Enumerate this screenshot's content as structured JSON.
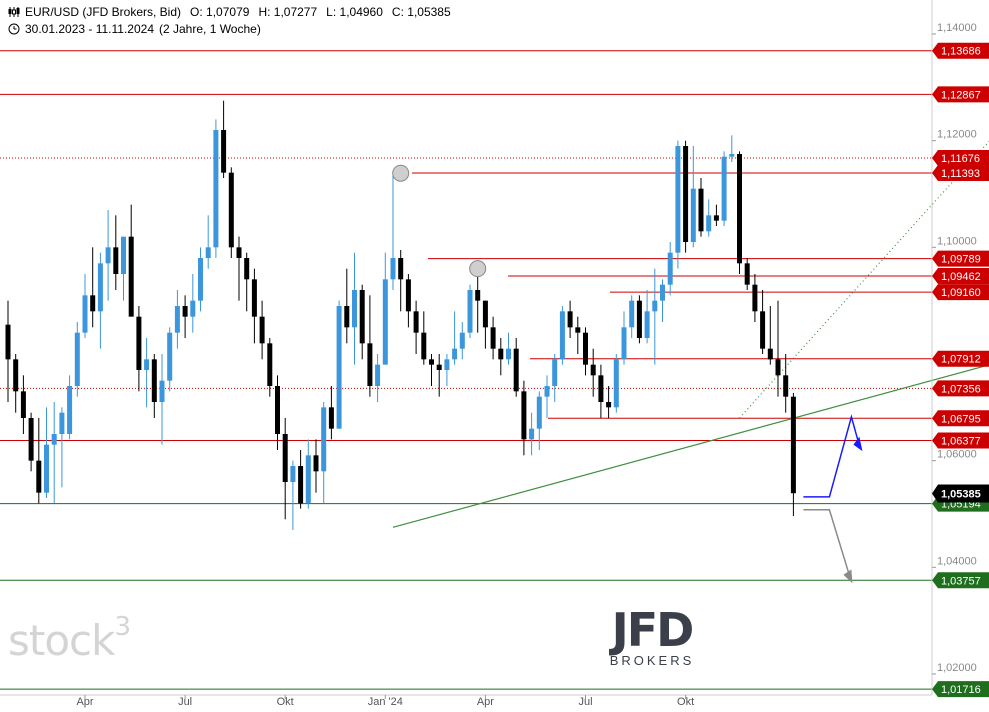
{
  "header": {
    "symbol": "EUR/USD (JFD Brokers, Bid)",
    "open_label": "O:",
    "open": "1,07079",
    "high_label": "H:",
    "high": "1,07277",
    "low_label": "L:",
    "low": "1,04960",
    "close_label": "C:",
    "close": "1,05385",
    "range": "30.01.2023 - 11.11.2024",
    "period": "(2 Jahre, 1 Woche)",
    "chart_icon": "candlestick-chart-icon",
    "period_icon": "clock-icon"
  },
  "watermark": {
    "text": "stock",
    "sup": "3"
  },
  "logo": {
    "big": "JFD",
    "small": "BROKERS"
  },
  "colors": {
    "candle_up": "#3c96dc",
    "candle_down": "#000000",
    "resistance": "#cc0000",
    "support": "#1e6e1e",
    "trendline": "#3f8f3f",
    "projection_up": "#1a1aff",
    "projection_down": "#8a8a8a",
    "price_badge": "#000000"
  },
  "chart_data": {
    "type": "candlestick",
    "title": "EUR/USD (JFD Brokers, Bid)",
    "timeframe": "weekly",
    "ylim": [
      1.012,
      1.148
    ],
    "y_ticks": [
      "1,14000",
      "1,12000",
      "1,10000",
      "1,06000",
      "1,04000",
      "1,02000"
    ],
    "x_ticks": [
      "Apr",
      "Jul",
      "Okt",
      "Jan '24",
      "Apr",
      "Jul",
      "Okt"
    ],
    "last_price": "1,05385",
    "horizontal_levels": [
      {
        "label": "1,13686",
        "value": 1.13686,
        "kind": "resistance",
        "style": "solid"
      },
      {
        "label": "1,12867",
        "value": 1.12867,
        "kind": "resistance",
        "style": "solid"
      },
      {
        "label": "1,11676",
        "value": 1.11676,
        "kind": "resistance",
        "style": "dotted"
      },
      {
        "label": "1,11393",
        "value": 1.11393,
        "kind": "resistance",
        "style": "solid"
      },
      {
        "label": "1,09789",
        "value": 1.09789,
        "kind": "resistance",
        "style": "solid"
      },
      {
        "label": "1,09462",
        "value": 1.09462,
        "kind": "resistance",
        "style": "solid"
      },
      {
        "label": "1,09160",
        "value": 1.0916,
        "kind": "resistance",
        "style": "solid"
      },
      {
        "label": "1,07912",
        "value": 1.07912,
        "kind": "resistance",
        "style": "solid"
      },
      {
        "label": "1,07356",
        "value": 1.07356,
        "kind": "resistance",
        "style": "dotted"
      },
      {
        "label": "1,06795",
        "value": 1.06795,
        "kind": "resistance",
        "style": "solid"
      },
      {
        "label": "1,06377",
        "value": 1.06377,
        "kind": "resistance",
        "style": "solid"
      },
      {
        "label": "1,05194",
        "value": 1.05194,
        "kind": "support",
        "style": "solid"
      },
      {
        "label": "1,03757",
        "value": 1.03757,
        "kind": "support",
        "style": "solid"
      },
      {
        "label": "1,01716",
        "value": 1.01716,
        "kind": "support",
        "style": "solid"
      }
    ],
    "candles": [
      {
        "o": 1.0855,
        "h": 1.09,
        "l": 1.071,
        "c": 1.079
      },
      {
        "o": 1.079,
        "h": 1.08,
        "l": 1.069,
        "c": 1.073
      },
      {
        "o": 1.073,
        "h": 1.076,
        "l": 1.065,
        "c": 1.068
      },
      {
        "o": 1.068,
        "h": 1.069,
        "l": 1.058,
        "c": 1.06
      },
      {
        "o": 1.06,
        "h": 1.068,
        "l": 1.052,
        "c": 1.054
      },
      {
        "o": 1.054,
        "h": 1.07,
        "l": 1.053,
        "c": 1.063
      },
      {
        "o": 1.063,
        "h": 1.071,
        "l": 1.052,
        "c": 1.065
      },
      {
        "o": 1.065,
        "h": 1.07,
        "l": 1.055,
        "c": 1.069
      },
      {
        "o": 1.065,
        "h": 1.076,
        "l": 1.064,
        "c": 1.074
      },
      {
        "o": 1.074,
        "h": 1.086,
        "l": 1.072,
        "c": 1.084
      },
      {
        "o": 1.084,
        "h": 1.095,
        "l": 1.083,
        "c": 1.091
      },
      {
        "o": 1.091,
        "h": 1.1,
        "l": 1.085,
        "c": 1.088
      },
      {
        "o": 1.088,
        "h": 1.099,
        "l": 1.081,
        "c": 1.097
      },
      {
        "o": 1.097,
        "h": 1.107,
        "l": 1.09,
        "c": 1.1
      },
      {
        "o": 1.1,
        "h": 1.106,
        "l": 1.092,
        "c": 1.095
      },
      {
        "o": 1.095,
        "h": 1.101,
        "l": 1.09,
        "c": 1.102
      },
      {
        "o": 1.102,
        "h": 1.108,
        "l": 1.088,
        "c": 1.087
      },
      {
        "o": 1.087,
        "h": 1.089,
        "l": 1.073,
        "c": 1.077
      },
      {
        "o": 1.077,
        "h": 1.083,
        "l": 1.07,
        "c": 1.079
      },
      {
        "o": 1.079,
        "h": 1.08,
        "l": 1.068,
        "c": 1.071
      },
      {
        "o": 1.071,
        "h": 1.08,
        "l": 1.063,
        "c": 1.075
      },
      {
        "o": 1.075,
        "h": 1.085,
        "l": 1.073,
        "c": 1.084
      },
      {
        "o": 1.084,
        "h": 1.092,
        "l": 1.081,
        "c": 1.089
      },
      {
        "o": 1.089,
        "h": 1.091,
        "l": 1.083,
        "c": 1.087
      },
      {
        "o": 1.087,
        "h": 1.095,
        "l": 1.084,
        "c": 1.09
      },
      {
        "o": 1.09,
        "h": 1.1,
        "l": 1.088,
        "c": 1.098
      },
      {
        "o": 1.098,
        "h": 1.106,
        "l": 1.096,
        "c": 1.1
      },
      {
        "o": 1.1,
        "h": 1.124,
        "l": 1.098,
        "c": 1.122
      },
      {
        "o": 1.122,
        "h": 1.1275,
        "l": 1.113,
        "c": 1.114
      },
      {
        "o": 1.114,
        "h": 1.115,
        "l": 1.098,
        "c": 1.1
      },
      {
        "o": 1.1,
        "h": 1.102,
        "l": 1.09,
        "c": 1.098
      },
      {
        "o": 1.098,
        "h": 1.099,
        "l": 1.088,
        "c": 1.094
      },
      {
        "o": 1.094,
        "h": 1.096,
        "l": 1.082,
        "c": 1.087
      },
      {
        "o": 1.087,
        "h": 1.09,
        "l": 1.079,
        "c": 1.082
      },
      {
        "o": 1.082,
        "h": 1.083,
        "l": 1.072,
        "c": 1.074
      },
      {
        "o": 1.074,
        "h": 1.076,
        "l": 1.062,
        "c": 1.065
      },
      {
        "o": 1.065,
        "h": 1.068,
        "l": 1.049,
        "c": 1.056
      },
      {
        "o": 1.056,
        "h": 1.06,
        "l": 1.047,
        "c": 1.059
      },
      {
        "o": 1.059,
        "h": 1.062,
        "l": 1.051,
        "c": 1.052
      },
      {
        "o": 1.052,
        "h": 1.064,
        "l": 1.051,
        "c": 1.061
      },
      {
        "o": 1.061,
        "h": 1.064,
        "l": 1.054,
        "c": 1.058
      },
      {
        "o": 1.058,
        "h": 1.071,
        "l": 1.052,
        "c": 1.07
      },
      {
        "o": 1.07,
        "h": 1.074,
        "l": 1.064,
        "c": 1.066
      },
      {
        "o": 1.066,
        "h": 1.09,
        "l": 1.066,
        "c": 1.089
      },
      {
        "o": 1.089,
        "h": 1.096,
        "l": 1.082,
        "c": 1.085
      },
      {
        "o": 1.085,
        "h": 1.099,
        "l": 1.078,
        "c": 1.092
      },
      {
        "o": 1.092,
        "h": 1.093,
        "l": 1.079,
        "c": 1.082
      },
      {
        "o": 1.082,
        "h": 1.091,
        "l": 1.072,
        "c": 1.074
      },
      {
        "o": 1.074,
        "h": 1.08,
        "l": 1.071,
        "c": 1.078
      },
      {
        "o": 1.078,
        "h": 1.099,
        "l": 1.078,
        "c": 1.094
      },
      {
        "o": 1.094,
        "h": 1.1139,
        "l": 1.092,
        "c": 1.098
      },
      {
        "o": 1.098,
        "h": 1.0995,
        "l": 1.088,
        "c": 1.094
      },
      {
        "o": 1.094,
        "h": 1.095,
        "l": 1.085,
        "c": 1.088
      },
      {
        "o": 1.088,
        "h": 1.09,
        "l": 1.08,
        "c": 1.084
      },
      {
        "o": 1.084,
        "h": 1.088,
        "l": 1.078,
        "c": 1.079
      },
      {
        "o": 1.079,
        "h": 1.08,
        "l": 1.074,
        "c": 1.078
      },
      {
        "o": 1.078,
        "h": 1.08,
        "l": 1.072,
        "c": 1.077
      },
      {
        "o": 1.077,
        "h": 1.08,
        "l": 1.074,
        "c": 1.079
      },
      {
        "o": 1.079,
        "h": 1.088,
        "l": 1.078,
        "c": 1.081
      },
      {
        "o": 1.081,
        "h": 1.086,
        "l": 1.079,
        "c": 1.084
      },
      {
        "o": 1.084,
        "h": 1.093,
        "l": 1.083,
        "c": 1.092
      },
      {
        "o": 1.092,
        "h": 1.096,
        "l": 1.084,
        "c": 1.09
      },
      {
        "o": 1.09,
        "h": 1.09,
        "l": 1.081,
        "c": 1.085
      },
      {
        "o": 1.085,
        "h": 1.087,
        "l": 1.079,
        "c": 1.081
      },
      {
        "o": 1.081,
        "h": 1.083,
        "l": 1.076,
        "c": 1.079
      },
      {
        "o": 1.079,
        "h": 1.084,
        "l": 1.078,
        "c": 1.081
      },
      {
        "o": 1.081,
        "h": 1.083,
        "l": 1.072,
        "c": 1.073
      },
      {
        "o": 1.073,
        "h": 1.075,
        "l": 1.061,
        "c": 1.064
      },
      {
        "o": 1.064,
        "h": 1.069,
        "l": 1.061,
        "c": 1.066
      },
      {
        "o": 1.066,
        "h": 1.073,
        "l": 1.062,
        "c": 1.072
      },
      {
        "o": 1.072,
        "h": 1.076,
        "l": 1.068,
        "c": 1.074
      },
      {
        "o": 1.074,
        "h": 1.08,
        "l": 1.071,
        "c": 1.079
      },
      {
        "o": 1.079,
        "h": 1.089,
        "l": 1.078,
        "c": 1.088
      },
      {
        "o": 1.088,
        "h": 1.09,
        "l": 1.083,
        "c": 1.085
      },
      {
        "o": 1.085,
        "h": 1.087,
        "l": 1.08,
        "c": 1.084
      },
      {
        "o": 1.084,
        "h": 1.085,
        "l": 1.076,
        "c": 1.078
      },
      {
        "o": 1.078,
        "h": 1.081,
        "l": 1.072,
        "c": 1.076
      },
      {
        "o": 1.076,
        "h": 1.078,
        "l": 1.068,
        "c": 1.071
      },
      {
        "o": 1.071,
        "h": 1.074,
        "l": 1.068,
        "c": 1.07
      },
      {
        "o": 1.07,
        "h": 1.08,
        "l": 1.069,
        "c": 1.079
      },
      {
        "o": 1.079,
        "h": 1.088,
        "l": 1.078,
        "c": 1.085
      },
      {
        "o": 1.085,
        "h": 1.091,
        "l": 1.083,
        "c": 1.09
      },
      {
        "o": 1.09,
        "h": 1.091,
        "l": 1.082,
        "c": 1.083
      },
      {
        "o": 1.083,
        "h": 1.092,
        "l": 1.082,
        "c": 1.088
      },
      {
        "o": 1.088,
        "h": 1.096,
        "l": 1.078,
        "c": 1.09
      },
      {
        "o": 1.09,
        "h": 1.094,
        "l": 1.086,
        "c": 1.093
      },
      {
        "o": 1.093,
        "h": 1.101,
        "l": 1.091,
        "c": 1.099
      },
      {
        "o": 1.099,
        "h": 1.12,
        "l": 1.096,
        "c": 1.119
      },
      {
        "o": 1.119,
        "h": 1.12,
        "l": 1.099,
        "c": 1.101
      },
      {
        "o": 1.101,
        "h": 1.119,
        "l": 1.1,
        "c": 1.111
      },
      {
        "o": 1.111,
        "h": 1.113,
        "l": 1.102,
        "c": 1.103
      },
      {
        "o": 1.103,
        "h": 1.109,
        "l": 1.102,
        "c": 1.106
      },
      {
        "o": 1.106,
        "h": 1.108,
        "l": 1.104,
        "c": 1.105
      },
      {
        "o": 1.105,
        "h": 1.118,
        "l": 1.104,
        "c": 1.117
      },
      {
        "o": 1.117,
        "h": 1.121,
        "l": 1.116,
        "c": 1.1175
      },
      {
        "o": 1.1175,
        "h": 1.118,
        "l": 1.095,
        "c": 1.097
      },
      {
        "o": 1.097,
        "h": 1.098,
        "l": 1.092,
        "c": 1.093
      },
      {
        "o": 1.093,
        "h": 1.095,
        "l": 1.086,
        "c": 1.088
      },
      {
        "o": 1.088,
        "h": 1.092,
        "l": 1.08,
        "c": 1.081
      },
      {
        "o": 1.081,
        "h": 1.089,
        "l": 1.078,
        "c": 1.079
      },
      {
        "o": 1.079,
        "h": 1.09,
        "l": 1.072,
        "c": 1.076
      },
      {
        "o": 1.076,
        "h": 1.08,
        "l": 1.069,
        "c": 1.072
      },
      {
        "o": 1.072,
        "h": 1.0727,
        "l": 1.0496,
        "c": 1.0539
      }
    ],
    "annotations": [
      {
        "kind": "rising-trendline",
        "from": {
          "index": 50,
          "value": 1.0475
        },
        "to": {
          "index": 158,
          "value": 1.09
        }
      },
      {
        "kind": "dotted-trendline",
        "from": {
          "index": 95,
          "value": 1.068
        },
        "to": {
          "index": 145,
          "value": 1.148
        }
      },
      {
        "kind": "circle-marker",
        "at": {
          "index": 51,
          "value": 1.1139
        }
      },
      {
        "kind": "circle-marker",
        "at": {
          "index": 61,
          "value": 1.096
        }
      },
      {
        "kind": "projection-up",
        "color": "#1a1aff"
      },
      {
        "kind": "projection-down",
        "color": "#8a8a8a"
      }
    ]
  }
}
